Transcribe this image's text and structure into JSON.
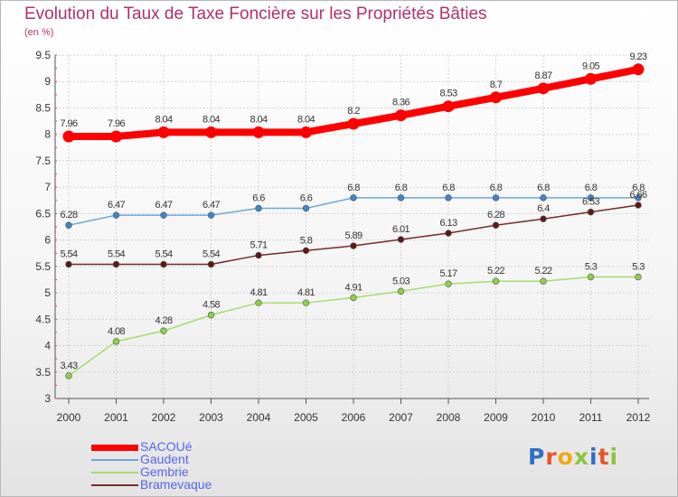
{
  "chart_data": {
    "type": "line",
    "title": "Evolution du Taux de Taxe Foncière sur les Propriétés Bâties",
    "subtitle": "(en %)",
    "xlabel": "",
    "ylabel": "",
    "categories": [
      "2000",
      "2001",
      "2002",
      "2003",
      "2004",
      "2005",
      "2006",
      "2007",
      "2008",
      "2009",
      "2010",
      "2011",
      "2012"
    ],
    "yticks": [
      "3",
      "3.5",
      "4",
      "4.5",
      "5",
      "5.5",
      "6",
      "6.5",
      "7",
      "7.5",
      "8",
      "8.5",
      "9",
      "9.5"
    ],
    "ylim": [
      3,
      9.5
    ],
    "grid": true,
    "legend_position": "bottom-left",
    "series": [
      {
        "name": "SACOUé",
        "color": "#ff0000",
        "point_color": "#ff0000",
        "weight": "thick",
        "values": [
          7.96,
          7.96,
          8.04,
          8.04,
          8.04,
          8.04,
          8.2,
          8.36,
          8.53,
          8.7,
          8.87,
          9.05,
          9.23
        ],
        "labels": [
          "7.96",
          "7.96",
          "8.04",
          "8.04",
          "8.04",
          "8.04",
          "8.2",
          "8.36",
          "8.53",
          "8.7",
          "8.87",
          "9.05",
          "9.23"
        ]
      },
      {
        "name": "Gaudent",
        "color": "#6fa7d6",
        "point_color": "#3f85c7",
        "weight": "thin",
        "values": [
          6.28,
          6.47,
          6.47,
          6.47,
          6.6,
          6.6,
          6.8,
          6.8,
          6.8,
          6.8,
          6.8,
          6.8,
          6.8
        ],
        "labels": [
          "6.28",
          "6.47",
          "6.47",
          "6.47",
          "6.6",
          "6.6",
          "6.8",
          "6.8",
          "6.8",
          "6.8",
          "6.8",
          "6.8",
          "6.8"
        ]
      },
      {
        "name": "Gembrie",
        "color": "#a6db72",
        "point_color": "#8ed04a",
        "weight": "thin",
        "values": [
          3.43,
          4.08,
          4.28,
          4.58,
          4.81,
          4.81,
          4.91,
          5.03,
          5.17,
          5.22,
          5.22,
          5.3,
          5.3
        ],
        "labels": [
          "3.43",
          "4.08",
          "4.28",
          "4.58",
          "4.81",
          "4.81",
          "4.91",
          "5.03",
          "5.17",
          "5.22",
          "5.22",
          "5.3",
          "5.3"
        ]
      },
      {
        "name": "Bramevaque",
        "color": "#7a2a2a",
        "point_color": "#5e1818",
        "weight": "thin",
        "values": [
          5.54,
          5.54,
          5.54,
          5.54,
          5.71,
          5.8,
          5.89,
          6.01,
          6.13,
          6.28,
          6.4,
          6.53,
          6.66
        ],
        "labels": [
          "5.54",
          "5.54",
          "5.54",
          "5.54",
          "5.71",
          "5.8",
          "5.89",
          "6.01",
          "6.13",
          "6.28",
          "6.4",
          "6.53",
          "6.66"
        ]
      }
    ]
  },
  "brand": {
    "logo_text": "Proxiti",
    "letter_colors": [
      "#2f6fc7",
      "#e8552a",
      "#f0a818",
      "#8ec43a",
      "#2f6fc7",
      "#e8552a",
      "#8ec43a"
    ]
  }
}
